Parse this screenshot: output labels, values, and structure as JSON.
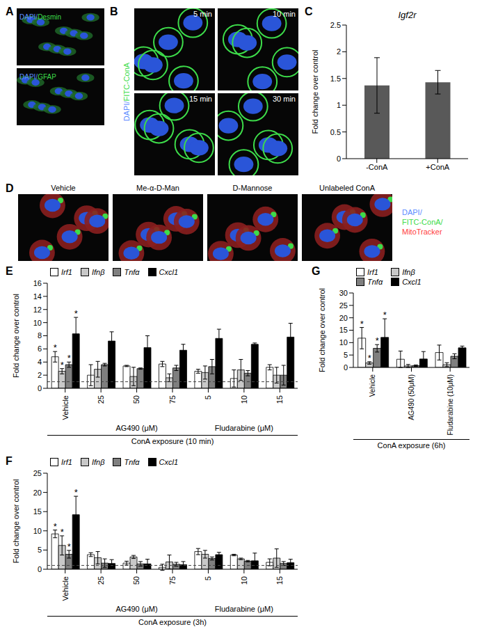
{
  "image_panels": [
    {
      "panel": "A",
      "images": [
        {
          "label": "DAPI/Desmin"
        },
        {
          "label": "DAPI/GFAP"
        }
      ]
    },
    {
      "panel": "B",
      "stain": "DAPI/FITC-ConA",
      "images": [
        {
          "label": "5 min"
        },
        {
          "label": "10 min"
        },
        {
          "label": "15 min"
        },
        {
          "label": "30 min"
        }
      ]
    },
    {
      "panel": "D",
      "stain": "DAPI/FITC-ConA/MitoTracker",
      "images": [
        {
          "label": "Vehicle"
        },
        {
          "label": "Me-α-D-Man"
        },
        {
          "label": "D-Mannose"
        },
        {
          "label": "Unlabeled ConA"
        }
      ]
    }
  ],
  "chart_data": [
    {
      "panel": "C",
      "type": "bar",
      "title": "Igf2r",
      "ylabel": "Fold change over control",
      "categories": [
        "-ConA",
        "+ConA"
      ],
      "values": [
        1.37,
        1.43
      ],
      "errors": [
        0.52,
        0.22
      ],
      "color": "#595959",
      "ylim": [
        0,
        2.5
      ],
      "yticks": [
        0,
        0.5,
        1,
        1.5,
        2,
        2.5
      ]
    },
    {
      "panel": "E",
      "type": "bar",
      "ylabel": "Fold change over control",
      "xlabel": "ConA exposure (10 min)",
      "legend": "top",
      "reference_line": 1,
      "categories": [
        "Vehicle",
        "25",
        "50",
        "75",
        "5",
        "10",
        "15"
      ],
      "groups": [
        {
          "label": "AG490 (μM)",
          "from": 1,
          "to": 3
        },
        {
          "label": "Fludarabine (μM)",
          "from": 4,
          "to": 6
        }
      ],
      "ylim": [
        0,
        16
      ],
      "yticks": [
        0,
        2,
        4,
        6,
        8,
        10,
        12,
        14,
        16
      ],
      "series": [
        {
          "name": "Irf1",
          "color": "#ffffff",
          "values": [
            4.8,
            2.0,
            3.4,
            3.7,
            2.6,
            1.5,
            3.2
          ],
          "errors": [
            0.8,
            1.6,
            0.1,
            0.4,
            0.3,
            1.3,
            0.4
          ],
          "annotations": [
            "*",
            null,
            null,
            null,
            null,
            null,
            null
          ]
        },
        {
          "name": "Ifnβ",
          "color": "#c8c8c8",
          "values": [
            2.6,
            2.9,
            1.8,
            1.6,
            2.4,
            2.8,
            2.0
          ],
          "errors": [
            0.4,
            1.2,
            1.4,
            0.6,
            1.0,
            1.6,
            1.2
          ],
          "annotations": [
            "*",
            null,
            null,
            null,
            null,
            null,
            null
          ]
        },
        {
          "name": "Tnfα",
          "color": "#7f7f7f",
          "values": [
            3.6,
            3.6,
            3.0,
            3.1,
            3.3,
            2.3,
            2.0
          ],
          "errors": [
            0.4,
            0.2,
            0.1,
            0.4,
            1.1,
            0.4,
            1.5
          ],
          "annotations": [
            "*",
            null,
            null,
            null,
            null,
            null,
            null
          ]
        },
        {
          "name": "Cxcl1",
          "color": "#000000",
          "values": [
            8.3,
            7.2,
            6.2,
            5.8,
            7.6,
            6.7,
            7.8
          ],
          "errors": [
            2.5,
            1.4,
            1.8,
            0.9,
            1.4,
            0.2,
            2.1
          ],
          "annotations": [
            "*",
            null,
            null,
            null,
            null,
            null,
            null
          ]
        }
      ]
    },
    {
      "panel": "G",
      "type": "bar",
      "ylabel": "Fold change over control",
      "xlabel": "ConA exposure (6h)",
      "legend": "top",
      "categories": [
        "Vehicle",
        "AG490 (50μM)",
        "Fludarabine (10μM)"
      ],
      "ylim": [
        0,
        30
      ],
      "yticks": [
        0,
        5,
        10,
        15,
        20,
        25,
        30
      ],
      "series": [
        {
          "name": "Irf1",
          "color": "#ffffff",
          "values": [
            11.8,
            3.3,
            6.0
          ],
          "errors": [
            4.3,
            3.3,
            3.0
          ],
          "annotations": [
            "*",
            null,
            null
          ]
        },
        {
          "name": "Ifnβ",
          "color": "#c8c8c8",
          "values": [
            1.8,
            0.6,
            1.1
          ],
          "errors": [
            0.5,
            0.6,
            0.8
          ],
          "annotations": [
            "*",
            null,
            null
          ]
        },
        {
          "name": "Tnfα",
          "color": "#7f7f7f",
          "values": [
            7.7,
            0.7,
            4.5
          ],
          "errors": [
            1.5,
            0.3,
            1.0
          ],
          "annotations": [
            "*",
            null,
            null
          ]
        },
        {
          "name": "Cxcl1",
          "color": "#000000",
          "values": [
            12.1,
            3.4,
            7.9
          ],
          "errors": [
            7.5,
            3.0,
            0.7
          ],
          "annotations": [
            "*",
            null,
            null
          ]
        }
      ]
    },
    {
      "panel": "F",
      "type": "bar",
      "ylabel": "Fold change over control",
      "xlabel": "ConA exposure (3h)",
      "legend": "top",
      "reference_line": 1,
      "categories": [
        "Vehicle",
        "25",
        "50",
        "75",
        "5",
        "10",
        "15"
      ],
      "groups": [
        {
          "label": "AG490 (μM)",
          "from": 1,
          "to": 3
        },
        {
          "label": "Fludarabine (μM)",
          "from": 4,
          "to": 6
        }
      ],
      "ylim": [
        0,
        25
      ],
      "yticks": [
        0,
        5,
        10,
        15,
        20,
        25
      ],
      "series": [
        {
          "name": "Irf1",
          "color": "#ffffff",
          "values": [
            9.2,
            3.8,
            1.6,
            0.5,
            4.6,
            3.7,
            1.8
          ],
          "errors": [
            1.0,
            0.5,
            0.5,
            0.8,
            0.8,
            0.2,
            0.9
          ],
          "annotations": [
            "*",
            null,
            null,
            null,
            null,
            null,
            null
          ]
        },
        {
          "name": "Ifnβ",
          "color": "#c8c8c8",
          "values": [
            6.2,
            3.0,
            3.2,
            1.9,
            3.9,
            2.7,
            2.9
          ],
          "errors": [
            2.5,
            1.6,
            0.4,
            1.8,
            1.0,
            0.2,
            2.4
          ],
          "annotations": [
            "*",
            null,
            null,
            null,
            null,
            null,
            null
          ]
        },
        {
          "name": "Tnfα",
          "color": "#7f7f7f",
          "values": [
            3.9,
            1.6,
            1.4,
            1.3,
            2.8,
            2.1,
            1.5
          ],
          "errors": [
            1.0,
            1.1,
            0.6,
            0.5,
            0.4,
            0.2,
            0.5
          ],
          "annotations": [
            "*",
            null,
            null,
            null,
            null,
            null,
            null
          ]
        },
        {
          "name": "Cxcl1",
          "color": "#000000",
          "values": [
            14.2,
            1.5,
            1.4,
            1.2,
            3.8,
            2.2,
            1.7
          ],
          "errors": [
            4.8,
            1.0,
            1.2,
            0.8,
            0.6,
            2.0,
            0.9
          ],
          "annotations": [
            "*",
            null,
            null,
            null,
            null,
            null,
            null
          ]
        }
      ]
    }
  ]
}
